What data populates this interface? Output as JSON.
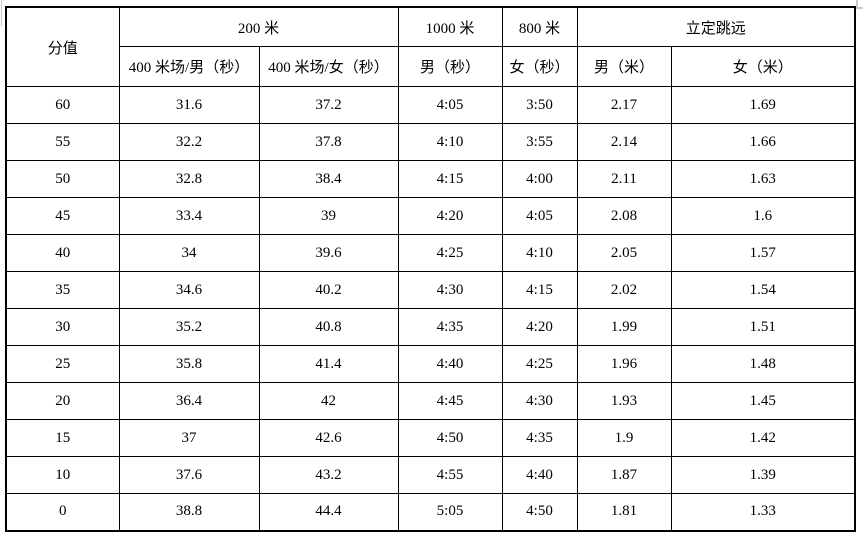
{
  "table": {
    "border_color": "#000000",
    "text_color": "#000000",
    "background_color": "#ffffff",
    "header": {
      "score": "分值",
      "group_200m": "200 米",
      "group_1000m": "1000 米",
      "group_800m": "800 米",
      "group_jump": "立定跳远",
      "sub_200m_male": "400 米场/男（秒）",
      "sub_200m_female": "400 米场/女（秒）",
      "sub_1000m_male": "男（秒）",
      "sub_800m_female": "女（秒）",
      "sub_jump_male": "男（米）",
      "sub_jump_female": "女（米）"
    },
    "columns": [
      "score",
      "m200-male",
      "m200-female",
      "m1000-male",
      "m800-female",
      "jump-male",
      "jump-female"
    ],
    "rows": [
      [
        "60",
        "31.6",
        "37.2",
        "4:05",
        "3:50",
        "2.17",
        "1.69"
      ],
      [
        "55",
        "32.2",
        "37.8",
        "4:10",
        "3:55",
        "2.14",
        "1.66"
      ],
      [
        "50",
        "32.8",
        "38.4",
        "4:15",
        "4:00",
        "2.11",
        "1.63"
      ],
      [
        "45",
        "33.4",
        "39",
        "4:20",
        "4:05",
        "2.08",
        "1.6"
      ],
      [
        "40",
        "34",
        "39.6",
        "4:25",
        "4:10",
        "2.05",
        "1.57"
      ],
      [
        "35",
        "34.6",
        "40.2",
        "4:30",
        "4:15",
        "2.02",
        "1.54"
      ],
      [
        "30",
        "35.2",
        "40.8",
        "4:35",
        "4:20",
        "1.99",
        "1.51"
      ],
      [
        "25",
        "35.8",
        "41.4",
        "4:40",
        "4:25",
        "1.96",
        "1.48"
      ],
      [
        "20",
        "36.4",
        "42",
        "4:45",
        "4:30",
        "1.93",
        "1.45"
      ],
      [
        "15",
        "37",
        "42.6",
        "4:50",
        "4:35",
        "1.9",
        "1.42"
      ],
      [
        "10",
        "37.6",
        "43.2",
        "4:55",
        "4:40",
        "1.87",
        "1.39"
      ],
      [
        "0",
        "38.8",
        "44.4",
        "5:05",
        "4:50",
        "1.81",
        "1.33"
      ]
    ]
  }
}
